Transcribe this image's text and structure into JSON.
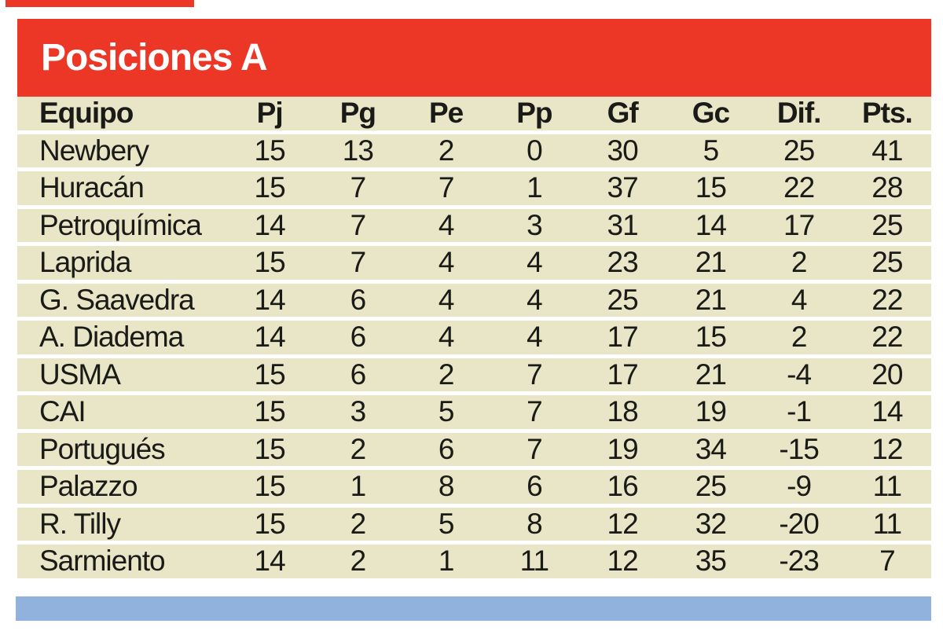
{
  "title": "Posiciones A",
  "colors": {
    "red": "#ec3726",
    "cream": "#e9e5c7",
    "blue": "#90b2dc",
    "text": "#1a1a17",
    "title_text": "#ffffff"
  },
  "chart_data": {
    "type": "table",
    "title": "Posiciones A",
    "columns": [
      "Equipo",
      "Pj",
      "Pg",
      "Pe",
      "Pp",
      "Gf",
      "Gc",
      "Dif.",
      "Pts."
    ],
    "rows": [
      [
        "Newbery",
        "15",
        "13",
        "2",
        "0",
        "30",
        "5",
        "25",
        "41"
      ],
      [
        "Huracán",
        "15",
        "7",
        "7",
        "1",
        "37",
        "15",
        "22",
        "28"
      ],
      [
        "Petroquímica",
        "14",
        "7",
        "4",
        "3",
        "31",
        "14",
        "17",
        "25"
      ],
      [
        "Laprida",
        "15",
        "7",
        "4",
        "4",
        "23",
        "21",
        "2",
        "25"
      ],
      [
        "G. Saavedra",
        "14",
        "6",
        "4",
        "4",
        "25",
        "21",
        "4",
        "22"
      ],
      [
        "A. Diadema",
        "14",
        "6",
        "4",
        "4",
        "17",
        "15",
        "2",
        "22"
      ],
      [
        "USMA",
        "15",
        "6",
        "2",
        "7",
        "17",
        "21",
        "-4",
        "20"
      ],
      [
        "CAI",
        "15",
        "3",
        "5",
        "7",
        "18",
        "19",
        "-1",
        "14"
      ],
      [
        "Portugués",
        "15",
        "2",
        "6",
        "7",
        "19",
        "34",
        "-15",
        "12"
      ],
      [
        "Palazzo",
        "15",
        "1",
        "8",
        "6",
        "16",
        "25",
        "-9",
        "11"
      ],
      [
        "R. Tilly",
        "15",
        "2",
        "5",
        "8",
        "12",
        "32",
        "-20",
        "11"
      ],
      [
        "Sarmiento",
        "14",
        "2",
        "1",
        "11",
        "12",
        "35",
        "-23",
        "7"
      ]
    ]
  }
}
